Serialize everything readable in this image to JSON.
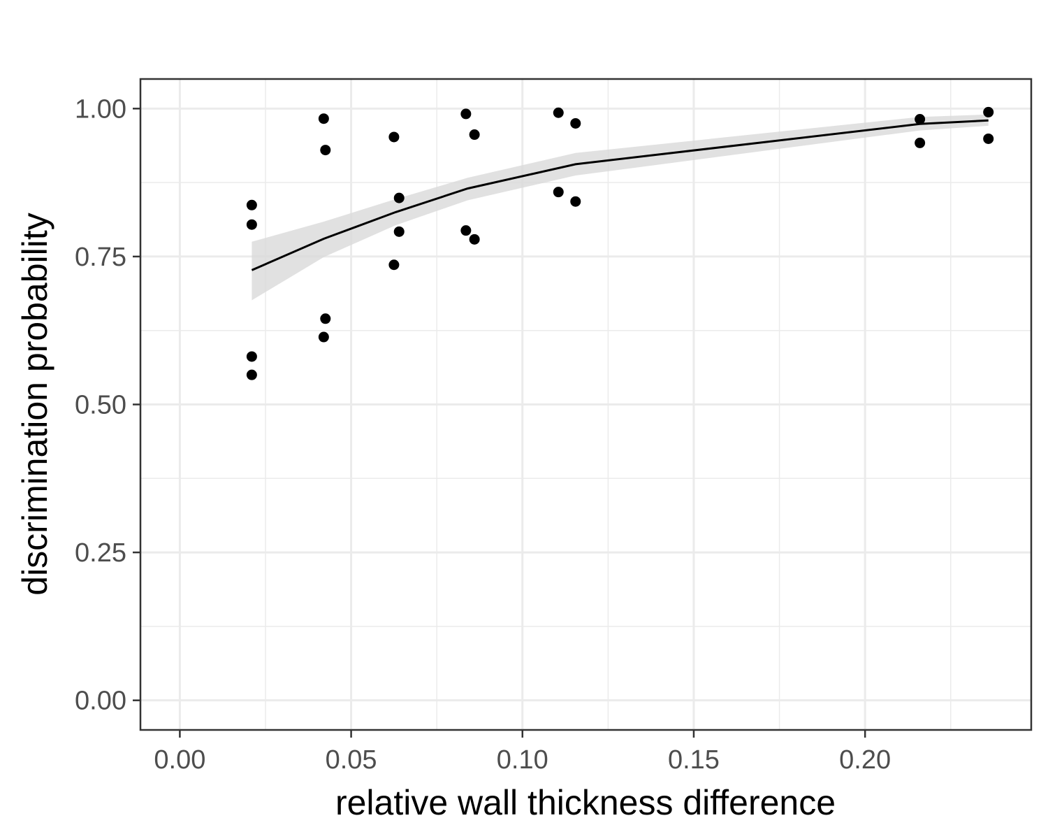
{
  "chart_data": {
    "type": "scatter",
    "title": "",
    "xlabel": "relative wall thickness difference",
    "ylabel": "discrimination probability",
    "xlim": [
      -0.0115,
      0.2485
    ],
    "ylim": [
      -0.05,
      1.05
    ],
    "x_ticks": [
      0.0,
      0.05,
      0.1,
      0.15,
      0.2
    ],
    "x_tick_labels": [
      "0.00",
      "0.05",
      "0.10",
      "0.15",
      "0.20"
    ],
    "y_ticks": [
      0.0,
      0.25,
      0.5,
      0.75,
      1.0
    ],
    "y_tick_labels": [
      "0.00",
      "0.25",
      "0.50",
      "0.75",
      "1.00"
    ],
    "grid": true,
    "legend": "none",
    "colors": {
      "points": "#000000",
      "fit_line": "#000000",
      "ribbon": "#d9d9d9",
      "grid": "#ebebeb",
      "panel_border": "#333333"
    },
    "points": [
      {
        "x": 0.021,
        "y": 0.837
      },
      {
        "x": 0.021,
        "y": 0.804
      },
      {
        "x": 0.021,
        "y": 0.581
      },
      {
        "x": 0.021,
        "y": 0.55
      },
      {
        "x": 0.042,
        "y": 0.983
      },
      {
        "x": 0.0425,
        "y": 0.93
      },
      {
        "x": 0.0425,
        "y": 0.645
      },
      {
        "x": 0.042,
        "y": 0.614
      },
      {
        "x": 0.0625,
        "y": 0.952
      },
      {
        "x": 0.0625,
        "y": 0.736
      },
      {
        "x": 0.064,
        "y": 0.849
      },
      {
        "x": 0.064,
        "y": 0.792
      },
      {
        "x": 0.0835,
        "y": 0.991
      },
      {
        "x": 0.086,
        "y": 0.956
      },
      {
        "x": 0.0835,
        "y": 0.794
      },
      {
        "x": 0.086,
        "y": 0.779
      },
      {
        "x": 0.1105,
        "y": 0.993
      },
      {
        "x": 0.1155,
        "y": 0.975
      },
      {
        "x": 0.1105,
        "y": 0.859
      },
      {
        "x": 0.1155,
        "y": 0.843
      },
      {
        "x": 0.216,
        "y": 0.982
      },
      {
        "x": 0.216,
        "y": 0.942
      },
      {
        "x": 0.236,
        "y": 0.994
      },
      {
        "x": 0.236,
        "y": 0.949
      }
    ],
    "fit": {
      "x": [
        0.021,
        0.042,
        0.063,
        0.084,
        0.1155,
        0.216,
        0.236
      ],
      "y": [
        0.727,
        0.78,
        0.825,
        0.865,
        0.906,
        0.974,
        0.98
      ],
      "lower": [
        0.676,
        0.749,
        0.803,
        0.845,
        0.887,
        0.963,
        0.971
      ],
      "upper": [
        0.775,
        0.809,
        0.847,
        0.883,
        0.925,
        0.986,
        0.99
      ]
    }
  }
}
